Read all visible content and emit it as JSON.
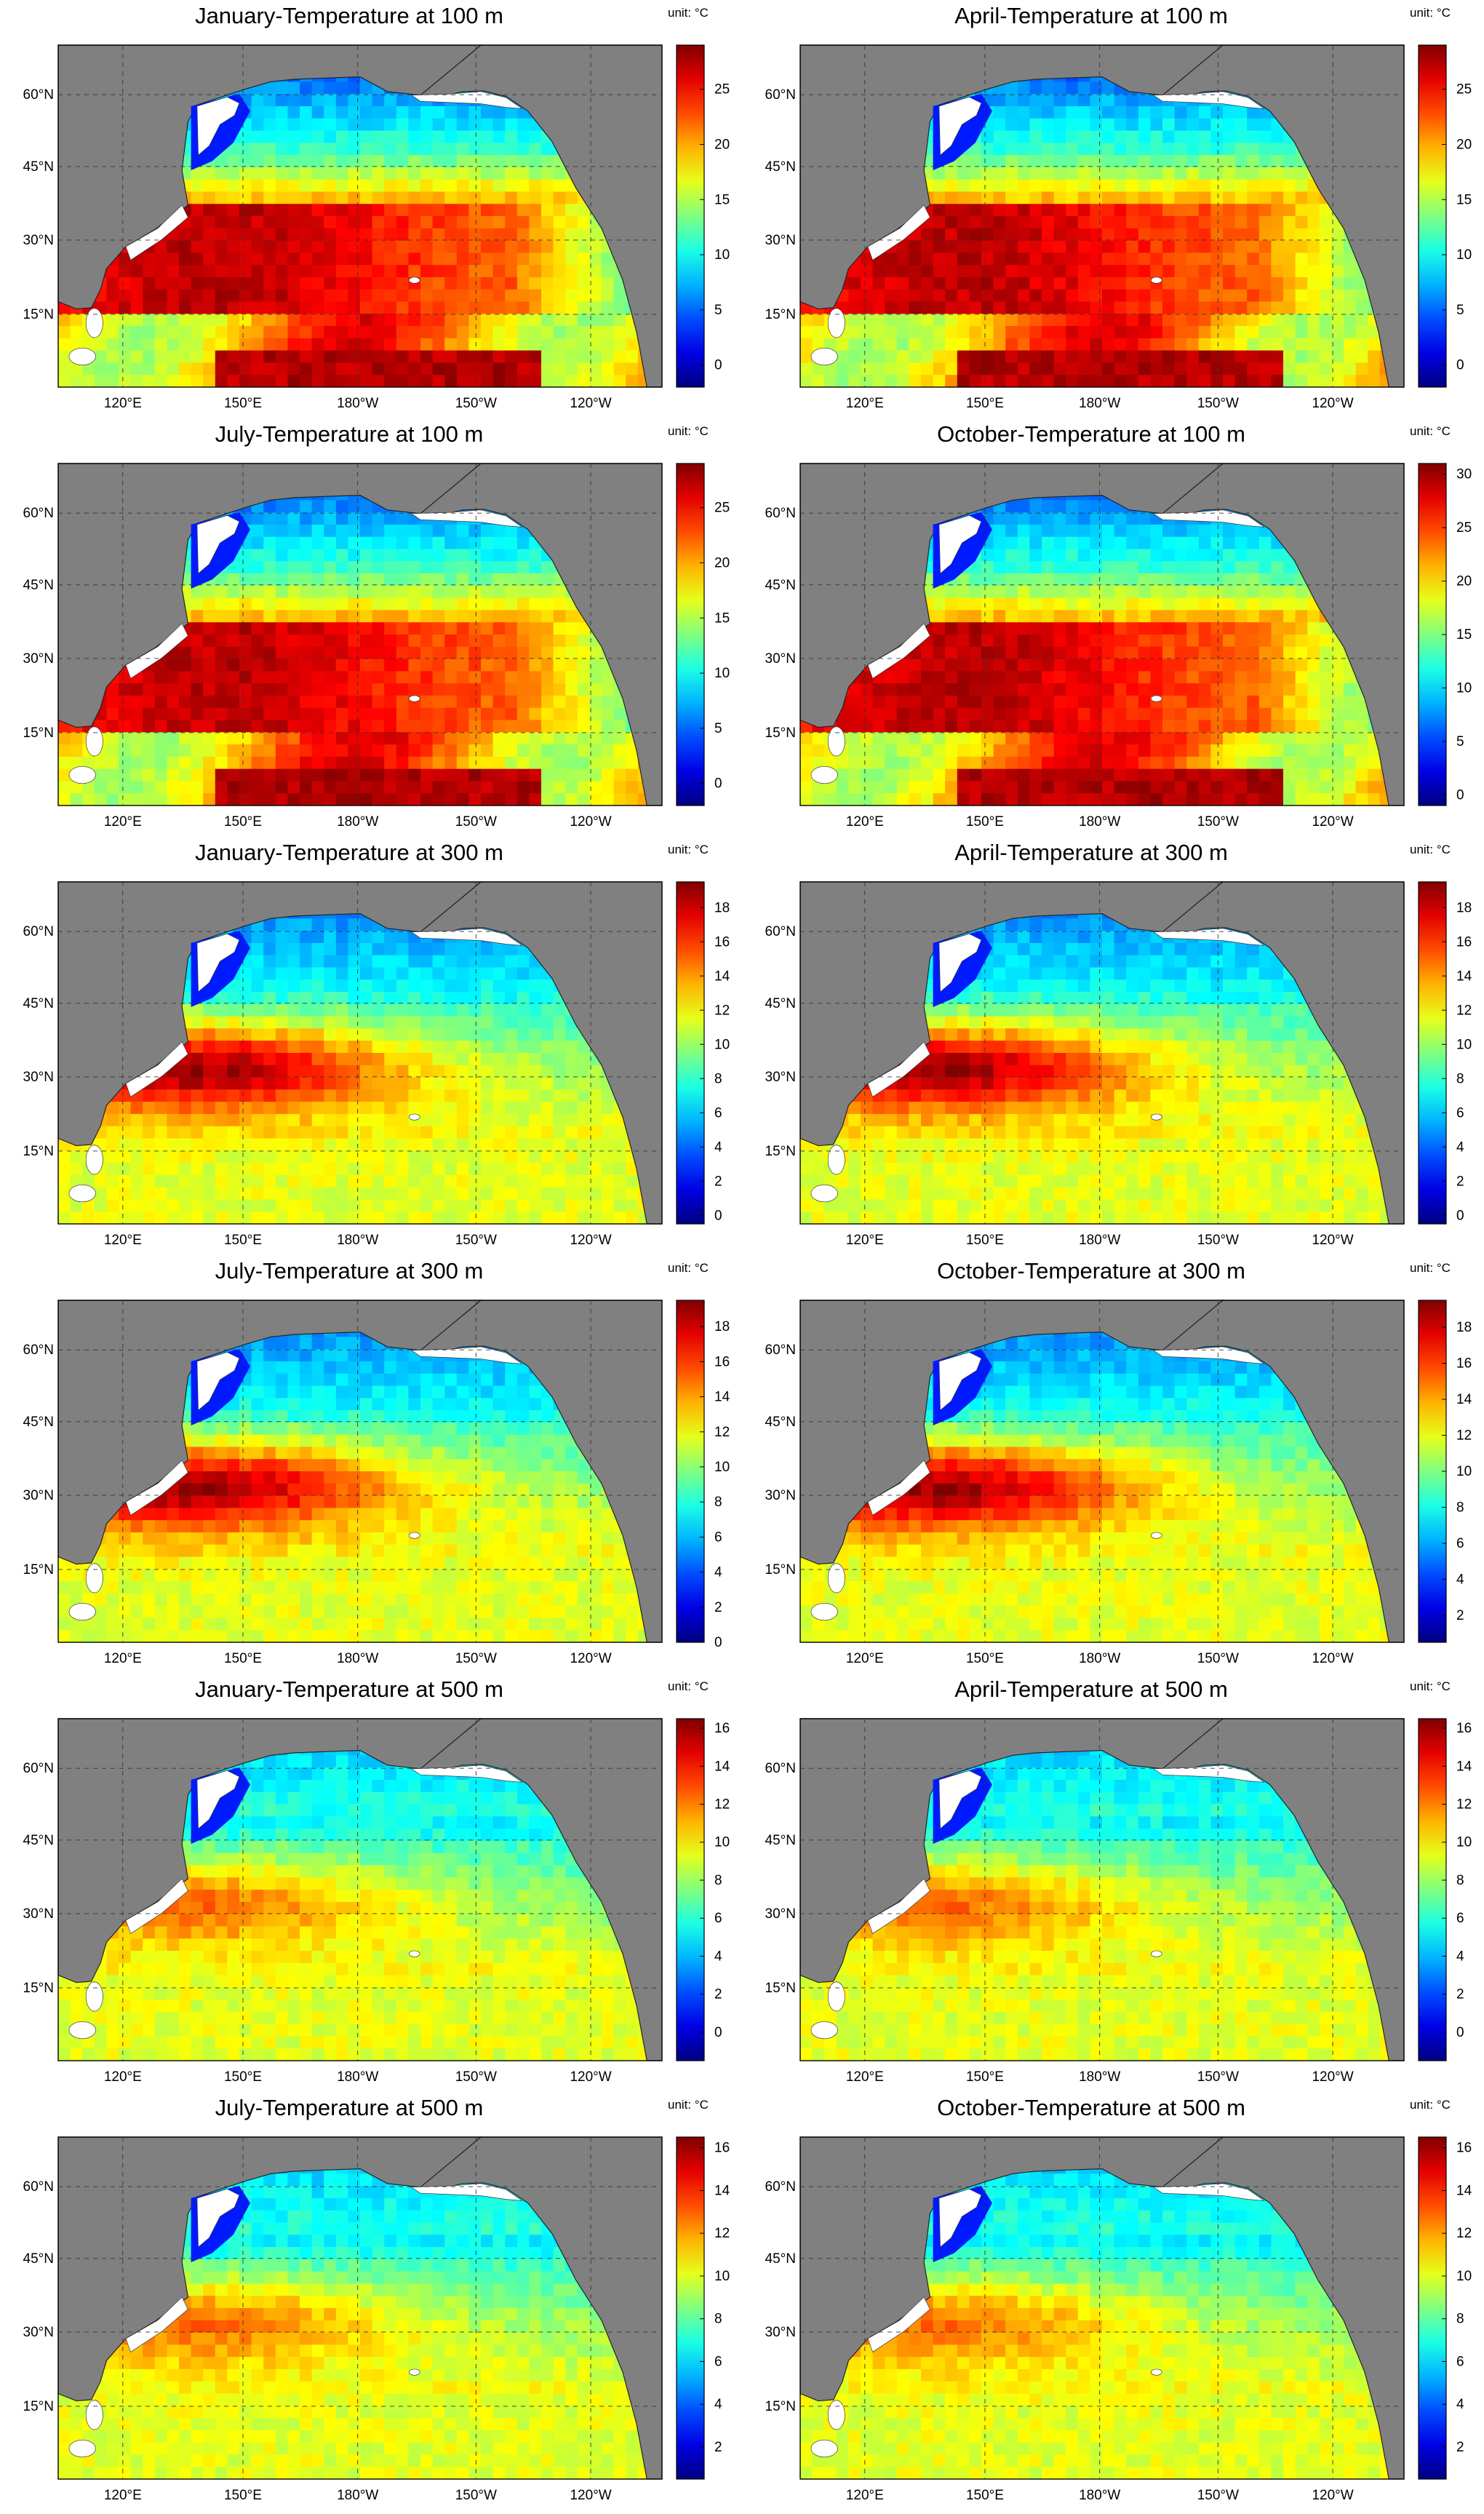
{
  "figure": {
    "panels": [
      {
        "title": "January-Temperature at 100 m",
        "unit": "unit: °C",
        "colorbar_ticks": [
          "0",
          "5",
          "10",
          "15",
          "20",
          "25"
        ],
        "range": [
          -2,
          29
        ],
        "x_ticks": [
          "120°E",
          "150°E",
          "180°W",
          "150°W",
          "120°W"
        ],
        "y_ticks": [
          "60°N",
          "45°N",
          "30°N",
          "15°N"
        ]
      },
      {
        "title": "April-Temperature at 100 m",
        "unit": "unit: °C",
        "colorbar_ticks": [
          "0",
          "5",
          "10",
          "15",
          "20",
          "25"
        ],
        "range": [
          -2,
          29
        ],
        "x_ticks": [
          "120°E",
          "150°E",
          "180°W",
          "150°W",
          "120°W"
        ],
        "y_ticks": [
          "60°N",
          "45°N",
          "30°N",
          "15°N"
        ]
      },
      {
        "title": "July-Temperature at 100 m",
        "unit": "unit: °C",
        "colorbar_ticks": [
          "0",
          "5",
          "10",
          "15",
          "20",
          "25"
        ],
        "range": [
          -2,
          29
        ],
        "x_ticks": [
          "120°E",
          "150°E",
          "180°W",
          "150°W",
          "120°W"
        ],
        "y_ticks": [
          "60°N",
          "45°N",
          "30°N",
          "15°N"
        ]
      },
      {
        "title": "October-Temperature at 100 m",
        "unit": "unit: °C",
        "colorbar_ticks": [
          "0",
          "5",
          "10",
          "15",
          "20",
          "25",
          "30"
        ],
        "range": [
          -1,
          31
        ],
        "x_ticks": [
          "120°E",
          "150°E",
          "180°W",
          "150°W",
          "120°W"
        ],
        "y_ticks": [
          "60°N",
          "45°N",
          "30°N",
          "15°N"
        ]
      },
      {
        "title": "January-Temperature at 300 m",
        "unit": "unit: °C",
        "colorbar_ticks": [
          "0",
          "2",
          "4",
          "6",
          "8",
          "10",
          "12",
          "14",
          "16",
          "18"
        ],
        "range": [
          -0.5,
          19.5
        ],
        "x_ticks": [
          "120°E",
          "150°E",
          "180°W",
          "150°W",
          "120°W"
        ],
        "y_ticks": [
          "60°N",
          "45°N",
          "30°N",
          "15°N"
        ]
      },
      {
        "title": "April-Temperature at 300 m",
        "unit": "unit: °C",
        "colorbar_ticks": [
          "0",
          "2",
          "4",
          "6",
          "8",
          "10",
          "12",
          "14",
          "16",
          "18"
        ],
        "range": [
          -0.5,
          19.5
        ],
        "x_ticks": [
          "120°E",
          "150°E",
          "180°W",
          "150°W",
          "120°W"
        ],
        "y_ticks": [
          "60°N",
          "45°N",
          "30°N",
          "15°N"
        ]
      },
      {
        "title": "July-Temperature at 300 m",
        "unit": "unit: °C",
        "colorbar_ticks": [
          "0",
          "2",
          "4",
          "6",
          "8",
          "10",
          "12",
          "14",
          "16",
          "18"
        ],
        "range": [
          0,
          19.5
        ],
        "x_ticks": [
          "120°E",
          "150°E",
          "180°W",
          "150°W",
          "120°W"
        ],
        "y_ticks": [
          "60°N",
          "45°N",
          "30°N",
          "15°N"
        ]
      },
      {
        "title": "October-Temperature at 300 m",
        "unit": "unit: °C",
        "colorbar_ticks": [
          "2",
          "4",
          "6",
          "8",
          "10",
          "12",
          "14",
          "16",
          "18"
        ],
        "range": [
          0.5,
          19.5
        ],
        "x_ticks": [
          "120°E",
          "150°E",
          "180°W",
          "150°W",
          "120°W"
        ],
        "y_ticks": [
          "60°N",
          "45°N",
          "30°N",
          "15°N"
        ]
      },
      {
        "title": "January-Temperature at 500 m",
        "unit": "unit: °C",
        "colorbar_ticks": [
          "0",
          "2",
          "4",
          "6",
          "8",
          "10",
          "12",
          "14",
          "16"
        ],
        "range": [
          -1.5,
          16.5
        ],
        "x_ticks": [
          "120°E",
          "150°E",
          "180°W",
          "150°W",
          "120°W"
        ],
        "y_ticks": [
          "60°N",
          "45°N",
          "30°N",
          "15°N"
        ]
      },
      {
        "title": "April-Temperature at 500 m",
        "unit": "unit: °C",
        "colorbar_ticks": [
          "0",
          "2",
          "4",
          "6",
          "8",
          "10",
          "12",
          "14",
          "16"
        ],
        "range": [
          -1.5,
          16.5
        ],
        "x_ticks": [
          "120°E",
          "150°E",
          "180°W",
          "150°W",
          "120°W"
        ],
        "y_ticks": [
          "60°N",
          "45°N",
          "30°N",
          "15°N"
        ]
      },
      {
        "title": "July-Temperature at 500 m",
        "unit": "unit: °C",
        "colorbar_ticks": [
          "2",
          "4",
          "6",
          "8",
          "10",
          "12",
          "14",
          "16"
        ],
        "range": [
          0.5,
          16.5
        ],
        "x_ticks": [
          "120°E",
          "150°E",
          "180°W",
          "150°W",
          "120°W"
        ],
        "y_ticks": [
          "60°N",
          "45°N",
          "30°N",
          "15°N"
        ]
      },
      {
        "title": "October-Temperature at 500 m",
        "unit": "unit: °C",
        "colorbar_ticks": [
          "2",
          "4",
          "6",
          "8",
          "10",
          "12",
          "14",
          "16"
        ],
        "range": [
          0.5,
          16.5
        ],
        "x_ticks": [
          "120°E",
          "150°E",
          "180°W",
          "150°W",
          "120°W"
        ],
        "y_ticks": [
          "60°N",
          "45°N",
          "30°N",
          "15°N"
        ]
      }
    ]
  },
  "colors": {
    "land": "#808080",
    "sea_ice": "#ffffff",
    "colormap": "jet"
  }
}
